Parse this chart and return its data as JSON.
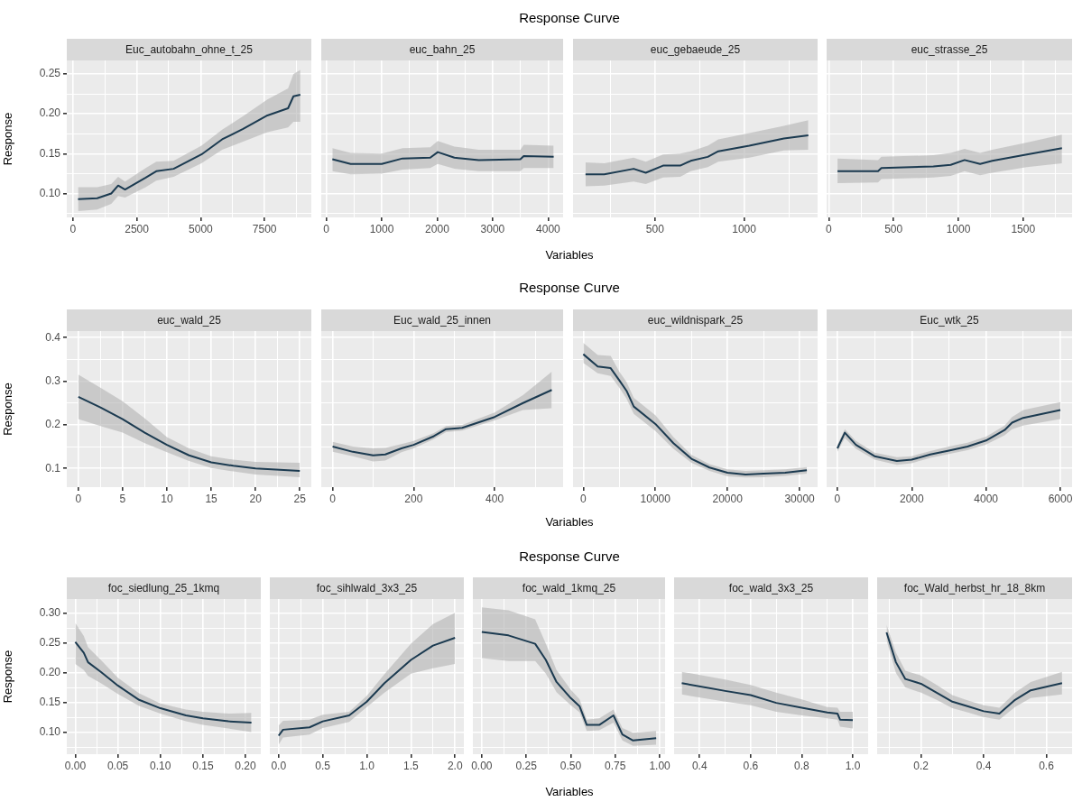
{
  "chart_data": [
    {
      "type": "line",
      "title": "Euc_autobahn_ohne_t_25",
      "annotations": [
        "Response Curve"
      ],
      "ylabel": "Response",
      "grid": true,
      "x": [
        200,
        950,
        1500,
        1770,
        2040,
        2850,
        3260,
        3940,
        5030,
        5840,
        6660,
        7610,
        8420,
        8630,
        8900
      ],
      "series": [
        {
          "color": "#1b3a50",
          "values": [
            0.093,
            0.094,
            0.1,
            0.11,
            0.105,
            0.12,
            0.128,
            0.131,
            0.149,
            0.168,
            0.181,
            0.198,
            0.207,
            0.222,
            0.224
          ],
          "lower": [
            0.078,
            0.08,
            0.087,
            0.097,
            0.095,
            0.108,
            0.116,
            0.121,
            0.138,
            0.155,
            0.165,
            0.177,
            0.183,
            0.19,
            0.19
          ],
          "upper": [
            0.108,
            0.108,
            0.112,
            0.121,
            0.115,
            0.132,
            0.14,
            0.141,
            0.16,
            0.18,
            0.197,
            0.218,
            0.232,
            0.25,
            0.255
          ]
        }
      ],
      "xlim": [
        -240,
        9330
      ],
      "xticks": [
        0,
        {
          "value": 1250,
          "label": null
        },
        2500,
        {
          "value": 3750,
          "label": null
        },
        5000,
        {
          "value": 6250,
          "label": null
        },
        7500,
        {
          "value": 8750,
          "label": null
        }
      ],
      "ylim": [
        0.07,
        0.267
      ],
      "yticks": [
        {
          "value": 0.075,
          "label": null
        },
        {
          "value": 0.1,
          "label": "0.10"
        },
        {
          "value": 0.125,
          "label": null
        },
        {
          "value": 0.15,
          "label": "0.15"
        },
        {
          "value": 0.175,
          "label": null
        },
        {
          "value": 0.2,
          "label": "0.20"
        },
        {
          "value": 0.225,
          "label": null
        },
        {
          "value": 0.25,
          "label": "0.25"
        }
      ]
    },
    {
      "type": "line",
      "title": "euc_bahn_25",
      "xlabel": "Variables",
      "tick_labels": "x",
      "grid": true,
      "x": [
        110,
        440,
        1000,
        1375,
        1875,
        2010,
        2310,
        2750,
        3500,
        3560,
        4100
      ],
      "series": [
        {
          "color": "#1b3a50",
          "values": [
            0.143,
            0.137,
            0.137,
            0.144,
            0.145,
            0.152,
            0.145,
            0.142,
            0.143,
            0.147,
            0.146
          ],
          "lower": [
            0.128,
            0.124,
            0.125,
            0.13,
            0.132,
            0.137,
            0.131,
            0.128,
            0.128,
            0.132,
            0.132
          ],
          "upper": [
            0.157,
            0.151,
            0.15,
            0.157,
            0.158,
            0.166,
            0.159,
            0.155,
            0.155,
            0.161,
            0.16
          ]
        }
      ],
      "xlim": [
        -90,
        4270
      ],
      "xticks": [
        0,
        {
          "value": 500,
          "label": null
        },
        1000,
        {
          "value": 1500,
          "label": null
        },
        2000,
        {
          "value": 2500,
          "label": null
        },
        3000,
        {
          "value": 3500,
          "label": null
        },
        4000
      ],
      "ylim": [
        0.07,
        0.267
      ],
      "yticks": [
        {
          "value": 0.075,
          "label": null
        },
        0.1,
        {
          "value": 0.125,
          "label": null
        },
        0.15,
        {
          "value": 0.175,
          "label": null
        },
        0.2,
        {
          "value": 0.225,
          "label": null
        },
        0.25
      ]
    },
    {
      "type": "line",
      "title": "euc_gebaeude_25",
      "tick_labels": "x",
      "grid": true,
      "x": [
        110,
        215,
        380,
        448,
        545,
        641,
        700,
        796,
        855,
        1029,
        1223,
        1360
      ],
      "series": [
        {
          "color": "#1b3a50",
          "values": [
            0.124,
            0.124,
            0.131,
            0.126,
            0.135,
            0.135,
            0.141,
            0.146,
            0.153,
            0.16,
            0.169,
            0.173
          ],
          "lower": [
            0.109,
            0.11,
            0.115,
            0.112,
            0.12,
            0.121,
            0.128,
            0.133,
            0.14,
            0.145,
            0.154,
            0.155
          ],
          "upper": [
            0.139,
            0.138,
            0.145,
            0.14,
            0.149,
            0.15,
            0.153,
            0.16,
            0.168,
            0.176,
            0.185,
            0.192
          ]
        }
      ],
      "xlim": [
        40,
        1412
      ],
      "xticks": [
        {
          "value": 250,
          "label": null
        },
        500,
        {
          "value": 750,
          "label": null
        },
        1000,
        {
          "value": 1250,
          "label": null
        }
      ],
      "ylim": [
        0.07,
        0.267
      ],
      "yticks": [
        {
          "value": 0.075,
          "label": null
        },
        0.1,
        {
          "value": 0.125,
          "label": null
        },
        0.15,
        {
          "value": 0.175,
          "label": null
        },
        0.2,
        {
          "value": 0.225,
          "label": null
        },
        0.25
      ]
    },
    {
      "type": "line",
      "title": "euc_strasse_25",
      "tick_labels": "x",
      "grid": true,
      "x": [
        67,
        380,
        406,
        807,
        941,
        1048,
        1168,
        1262,
        1529,
        1800
      ],
      "series": [
        {
          "color": "#1b3a50",
          "values": [
            0.128,
            0.128,
            0.132,
            0.134,
            0.136,
            0.142,
            0.137,
            0.141,
            0.149,
            0.157
          ],
          "lower": [
            0.113,
            0.114,
            0.118,
            0.12,
            0.122,
            0.128,
            0.123,
            0.126,
            0.133,
            0.138
          ],
          "upper": [
            0.144,
            0.142,
            0.146,
            0.148,
            0.151,
            0.156,
            0.151,
            0.155,
            0.164,
            0.174
          ]
        }
      ],
      "xlim": [
        -17,
        1878
      ],
      "xticks": [
        0,
        {
          "value": 250,
          "label": null
        },
        500,
        {
          "value": 750,
          "label": null
        },
        1000,
        {
          "value": 1250,
          "label": null
        },
        1500,
        {
          "value": 1750,
          "label": null
        }
      ],
      "ylim": [
        0.07,
        0.267
      ],
      "yticks": [
        {
          "value": 0.075,
          "label": null
        },
        0.1,
        {
          "value": 0.125,
          "label": null
        },
        0.15,
        {
          "value": 0.175,
          "label": null
        },
        0.2,
        {
          "value": 0.225,
          "label": null
        },
        0.25
      ]
    },
    {
      "type": "line",
      "title": "euc_wald_25",
      "annotations": [
        "Response Curve"
      ],
      "ylabel": "Response",
      "grid": true,
      "x": [
        0,
        2.5,
        5,
        7.5,
        10,
        12.5,
        15,
        17.5,
        20,
        25
      ],
      "series": [
        {
          "color": "#1b3a50",
          "values": [
            0.264,
            0.24,
            0.213,
            0.182,
            0.154,
            0.13,
            0.114,
            0.106,
            0.1,
            0.094
          ],
          "lower": [
            0.213,
            0.197,
            0.182,
            0.158,
            0.137,
            0.117,
            0.101,
            0.093,
            0.086,
            0.08
          ],
          "upper": [
            0.315,
            0.285,
            0.254,
            0.215,
            0.172,
            0.146,
            0.128,
            0.12,
            0.115,
            0.113
          ]
        }
      ],
      "xlim": [
        -1.3,
        26.3
      ],
      "xticks": [
        0,
        {
          "value": 2.5,
          "label": null
        },
        5,
        {
          "value": 7.5,
          "label": null
        },
        10,
        {
          "value": 12.5,
          "label": null
        },
        15,
        {
          "value": 17.5,
          "label": null
        },
        20,
        {
          "value": 22.5,
          "label": null
        },
        25
      ],
      "ylim": [
        0.057,
        0.415
      ],
      "yticks": [
        0.1,
        {
          "value": 0.15,
          "label": null
        },
        0.2,
        {
          "value": 0.25,
          "label": null
        },
        0.3,
        {
          "value": 0.35,
          "label": null
        },
        0.4
      ]
    },
    {
      "type": "line",
      "title": "Euc_wald_25_innen",
      "xlabel": "Variables",
      "tick_labels": "x",
      "grid": true,
      "x": [
        0,
        50,
        100,
        130,
        170,
        200,
        250,
        280,
        320,
        400,
        470,
        541
      ],
      "series": [
        {
          "color": "#1b3a50",
          "values": [
            0.15,
            0.138,
            0.13,
            0.132,
            0.146,
            0.154,
            0.174,
            0.19,
            0.193,
            0.218,
            0.25,
            0.28
          ],
          "lower": [
            0.138,
            0.128,
            0.116,
            0.118,
            0.137,
            0.146,
            0.167,
            0.183,
            0.187,
            0.21,
            0.234,
            0.238
          ],
          "upper": [
            0.161,
            0.15,
            0.146,
            0.147,
            0.156,
            0.163,
            0.181,
            0.197,
            0.2,
            0.228,
            0.268,
            0.322
          ]
        }
      ],
      "xlim": [
        -28,
        569
      ],
      "xticks": [
        0,
        {
          "value": 100,
          "label": null
        },
        200,
        {
          "value": 300,
          "label": null
        },
        400,
        {
          "value": 500,
          "label": null
        }
      ],
      "ylim": [
        0.057,
        0.415
      ],
      "yticks": [
        0.1,
        {
          "value": 0.15,
          "label": null
        },
        0.2,
        {
          "value": 0.25,
          "label": null
        },
        0.3,
        {
          "value": 0.35,
          "label": null
        },
        0.4
      ]
    },
    {
      "type": "line",
      "title": "euc_wildnispark_25",
      "tick_labels": "x",
      "grid": true,
      "x": [
        0,
        2000,
        3800,
        5000,
        6000,
        7000,
        10000,
        12500,
        15000,
        17500,
        20000,
        22500,
        25000,
        28000,
        31000
      ],
      "series": [
        {
          "color": "#1b3a50",
          "values": [
            0.362,
            0.334,
            0.33,
            0.302,
            0.278,
            0.242,
            0.202,
            0.158,
            0.122,
            0.102,
            0.09,
            0.086,
            0.088,
            0.09,
            0.096
          ],
          "lower": [
            0.342,
            0.318,
            0.312,
            0.285,
            0.26,
            0.225,
            0.186,
            0.145,
            0.113,
            0.094,
            0.082,
            0.079,
            0.08,
            0.083,
            0.088
          ],
          "upper": [
            0.388,
            0.36,
            0.358,
            0.322,
            0.298,
            0.262,
            0.222,
            0.172,
            0.131,
            0.11,
            0.098,
            0.094,
            0.096,
            0.098,
            0.103
          ]
        }
      ],
      "xlim": [
        -1420,
        32490
      ],
      "xticks": [
        0,
        {
          "value": 5000,
          "label": null
        },
        10000,
        {
          "value": 15000,
          "label": null
        },
        20000,
        {
          "value": 25000,
          "label": null
        },
        30000
      ],
      "ylim": [
        0.057,
        0.415
      ],
      "yticks": [
        0.1,
        {
          "value": 0.15,
          "label": null
        },
        0.2,
        {
          "value": 0.25,
          "label": null
        },
        0.3,
        {
          "value": 0.35,
          "label": null
        },
        0.4
      ]
    },
    {
      "type": "line",
      "title": "Euc_wtk_25",
      "tick_labels": "x",
      "grid": true,
      "x": [
        0,
        200,
        500,
        1000,
        1600,
        2000,
        2500,
        3000,
        3500,
        4000,
        4500,
        4700,
        5000,
        6000
      ],
      "series": [
        {
          "color": "#1b3a50",
          "values": [
            0.146,
            0.182,
            0.154,
            0.128,
            0.117,
            0.12,
            0.132,
            0.141,
            0.15,
            0.164,
            0.188,
            0.205,
            0.216,
            0.234
          ],
          "lower": [
            0.138,
            0.17,
            0.145,
            0.12,
            0.108,
            0.112,
            0.124,
            0.133,
            0.142,
            0.155,
            0.176,
            0.19,
            0.198,
            0.213
          ],
          "upper": [
            0.154,
            0.19,
            0.163,
            0.136,
            0.126,
            0.128,
            0.14,
            0.15,
            0.159,
            0.173,
            0.198,
            0.218,
            0.234,
            0.252
          ]
        }
      ],
      "xlim": [
        -290,
        6315
      ],
      "xticks": [
        0,
        {
          "value": 1000,
          "label": null
        },
        2000,
        {
          "value": 3000,
          "label": null
        },
        4000,
        {
          "value": 5000,
          "label": null
        },
        6000
      ],
      "ylim": [
        0.057,
        0.415
      ],
      "yticks": [
        0.1,
        {
          "value": 0.15,
          "label": null
        },
        0.2,
        {
          "value": 0.25,
          "label": null
        },
        0.3,
        {
          "value": 0.35,
          "label": null
        },
        0.4
      ]
    },
    {
      "type": "line",
      "title": "foc_siedlung_25_1kmq",
      "annotations": [
        "Response Curve"
      ],
      "ylabel": "Response",
      "grid": true,
      "x": [
        0,
        0.01,
        0.015,
        0.03,
        0.05,
        0.075,
        0.1,
        0.13,
        0.15,
        0.18,
        0.207
      ],
      "series": [
        {
          "color": "#1b3a50",
          "values": [
            0.252,
            0.234,
            0.218,
            0.202,
            0.179,
            0.155,
            0.141,
            0.129,
            0.124,
            0.119,
            0.117
          ],
          "lower": [
            0.215,
            0.205,
            0.195,
            0.183,
            0.165,
            0.145,
            0.132,
            0.119,
            0.113,
            0.107,
            0.101
          ],
          "upper": [
            0.284,
            0.262,
            0.243,
            0.222,
            0.192,
            0.166,
            0.149,
            0.139,
            0.135,
            0.132,
            0.133
          ]
        }
      ],
      "xlim": [
        -0.01,
        0.218
      ],
      "xticks": [
        {
          "value": 0,
          "label": "0.00"
        },
        {
          "value": 0.025,
          "label": null
        },
        {
          "value": 0.05,
          "label": "0.05"
        },
        {
          "value": 0.075,
          "label": null
        },
        {
          "value": 0.1,
          "label": "0.10"
        },
        {
          "value": 0.125,
          "label": null
        },
        {
          "value": 0.15,
          "label": "0.15"
        },
        {
          "value": 0.175,
          "label": null
        },
        {
          "value": 0.2,
          "label": "0.20"
        }
      ],
      "ylim": [
        0.064,
        0.324
      ],
      "yticks": [
        {
          "value": 0.075,
          "label": null
        },
        {
          "value": 0.1,
          "label": "0.10"
        },
        {
          "value": 0.125,
          "label": null
        },
        {
          "value": 0.15,
          "label": "0.15"
        },
        {
          "value": 0.175,
          "label": null
        },
        {
          "value": 0.2,
          "label": "0.20"
        },
        {
          "value": 0.225,
          "label": null
        },
        {
          "value": 0.25,
          "label": "0.25"
        },
        {
          "value": 0.275,
          "label": null
        },
        {
          "value": 0.3,
          "label": "0.30"
        }
      ]
    },
    {
      "type": "line",
      "title": "foc_sihlwald_3x3_25",
      "tick_labels": "x",
      "grid": true,
      "x": [
        0,
        0.05,
        0.35,
        0.5,
        0.8,
        1.0,
        1.2,
        1.5,
        1.75,
        2.0
      ],
      "series": [
        {
          "color": "#1b3a50",
          "values": [
            0.095,
            0.105,
            0.109,
            0.119,
            0.129,
            0.152,
            0.183,
            0.222,
            0.246,
            0.259
          ],
          "lower": [
            0.08,
            0.092,
            0.097,
            0.108,
            0.118,
            0.143,
            0.167,
            0.199,
            0.208,
            0.215
          ],
          "upper": [
            0.112,
            0.12,
            0.122,
            0.13,
            0.135,
            0.162,
            0.198,
            0.249,
            0.282,
            0.301
          ]
        }
      ],
      "xlim": [
        -0.1,
        2.1
      ],
      "xticks": [
        {
          "value": 0,
          "label": "0.0"
        },
        {
          "value": 0.25,
          "label": null
        },
        {
          "value": 0.5,
          "label": "0.5"
        },
        {
          "value": 0.75,
          "label": null
        },
        {
          "value": 1,
          "label": "1.0"
        },
        {
          "value": 1.25,
          "label": null
        },
        {
          "value": 1.5,
          "label": "1.5"
        },
        {
          "value": 1.75,
          "label": null
        },
        {
          "value": 2,
          "label": "2.0"
        }
      ],
      "ylim": [
        0.064,
        0.324
      ],
      "yticks": [
        {
          "value": 0.075,
          "label": null
        },
        0.1,
        {
          "value": 0.125,
          "label": null
        },
        0.15,
        {
          "value": 0.175,
          "label": null
        },
        0.2,
        {
          "value": 0.225,
          "label": null
        },
        0.25,
        {
          "value": 0.275,
          "label": null
        },
        0.3
      ]
    },
    {
      "type": "line",
      "title": "foc_wald_1kmq_25",
      "xlabel": "Variables",
      "tick_labels": "x",
      "grid": true,
      "x": [
        0,
        0.15,
        0.3,
        0.36,
        0.42,
        0.5,
        0.55,
        0.59,
        0.66,
        0.74,
        0.79,
        0.85,
        0.98
      ],
      "series": [
        {
          "color": "#1b3a50",
          "values": [
            0.269,
            0.263,
            0.249,
            0.222,
            0.185,
            0.158,
            0.144,
            0.113,
            0.113,
            0.129,
            0.097,
            0.087,
            0.091
          ],
          "lower": [
            0.225,
            0.22,
            0.22,
            0.199,
            0.168,
            0.146,
            0.134,
            0.103,
            0.104,
            0.117,
            0.087,
            0.078,
            0.08
          ],
          "upper": [
            0.31,
            0.305,
            0.29,
            0.249,
            0.205,
            0.172,
            0.156,
            0.122,
            0.124,
            0.139,
            0.108,
            0.1,
            0.103
          ]
        }
      ],
      "xlim": [
        -0.05,
        1.03
      ],
      "xticks": [
        {
          "value": 0,
          "label": "0.00"
        },
        {
          "value": 0.125,
          "label": null
        },
        {
          "value": 0.25,
          "label": "0.25"
        },
        {
          "value": 0.375,
          "label": null
        },
        {
          "value": 0.5,
          "label": "0.50"
        },
        {
          "value": 0.625,
          "label": null
        },
        {
          "value": 0.75,
          "label": "0.75"
        },
        {
          "value": 0.875,
          "label": null
        },
        {
          "value": 1,
          "label": "1.00"
        }
      ],
      "ylim": [
        0.064,
        0.324
      ],
      "yticks": [
        {
          "value": 0.075,
          "label": null
        },
        0.1,
        {
          "value": 0.125,
          "label": null
        },
        0.15,
        {
          "value": 0.175,
          "label": null
        },
        0.2,
        {
          "value": 0.225,
          "label": null
        },
        0.25,
        {
          "value": 0.275,
          "label": null
        },
        0.3
      ]
    },
    {
      "type": "line",
      "title": "foc_wald_3x3_25",
      "tick_labels": "x",
      "grid": true,
      "x": [
        0.33,
        0.5,
        0.6,
        0.7,
        0.8,
        0.9,
        0.94,
        0.95,
        1.0
      ],
      "series": [
        {
          "color": "#1b3a50",
          "values": [
            0.183,
            0.17,
            0.163,
            0.15,
            0.142,
            0.134,
            0.132,
            0.122,
            0.121
          ],
          "lower": [
            0.164,
            0.152,
            0.146,
            0.135,
            0.129,
            0.124,
            0.122,
            0.11,
            0.107
          ],
          "upper": [
            0.202,
            0.189,
            0.18,
            0.167,
            0.156,
            0.143,
            0.142,
            0.135,
            0.135
          ]
        }
      ],
      "xlim": [
        0.3,
        1.06
      ],
      "xticks": [
        {
          "value": 0.4,
          "label": "0.4"
        },
        {
          "value": 0.5,
          "label": null
        },
        {
          "value": 0.6,
          "label": "0.6"
        },
        {
          "value": 0.7,
          "label": null
        },
        {
          "value": 0.8,
          "label": "0.8"
        },
        {
          "value": 0.9,
          "label": null
        },
        {
          "value": 1,
          "label": "1.0"
        }
      ],
      "ylim": [
        0.064,
        0.324
      ],
      "yticks": [
        {
          "value": 0.075,
          "label": null
        },
        0.1,
        {
          "value": 0.125,
          "label": null
        },
        0.15,
        {
          "value": 0.175,
          "label": null
        },
        0.2,
        {
          "value": 0.225,
          "label": null
        },
        0.25,
        {
          "value": 0.275,
          "label": null
        },
        0.3
      ]
    },
    {
      "type": "line",
      "title": "foc_Wald_herbst_hr_18_8km",
      "tick_labels": "x",
      "grid": true,
      "x": [
        0.09,
        0.12,
        0.15,
        0.2,
        0.25,
        0.3,
        0.35,
        0.4,
        0.45,
        0.5,
        0.55,
        0.65
      ],
      "series": [
        {
          "color": "#1b3a50",
          "values": [
            0.268,
            0.218,
            0.19,
            0.182,
            0.167,
            0.152,
            0.144,
            0.136,
            0.132,
            0.155,
            0.171,
            0.183
          ],
          "lower": [
            0.255,
            0.2,
            0.176,
            0.167,
            0.155,
            0.141,
            0.134,
            0.126,
            0.122,
            0.143,
            0.158,
            0.164
          ],
          "upper": [
            0.281,
            0.234,
            0.204,
            0.196,
            0.18,
            0.163,
            0.154,
            0.146,
            0.142,
            0.167,
            0.185,
            0.202
          ]
        }
      ],
      "xlim": [
        0.06,
        0.682
      ],
      "xticks": [
        {
          "value": 0.1,
          "label": null
        },
        {
          "value": 0.2,
          "label": "0.2"
        },
        {
          "value": 0.3,
          "label": null
        },
        {
          "value": 0.4,
          "label": "0.4"
        },
        {
          "value": 0.5,
          "label": null
        },
        {
          "value": 0.6,
          "label": "0.6"
        }
      ],
      "ylim": [
        0.064,
        0.324
      ],
      "yticks": [
        {
          "value": 0.075,
          "label": null
        },
        0.1,
        {
          "value": 0.125,
          "label": null
        },
        0.15,
        {
          "value": 0.175,
          "label": null
        },
        0.2,
        {
          "value": 0.225,
          "label": null
        },
        0.25,
        {
          "value": 0.275,
          "label": null
        },
        0.3
      ]
    }
  ]
}
